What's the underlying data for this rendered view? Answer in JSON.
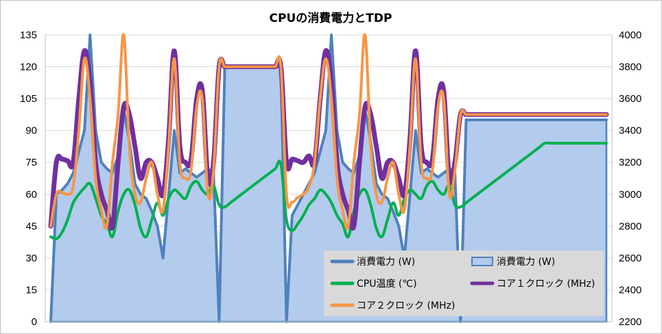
{
  "chart_data": {
    "type": "line",
    "title": "CPUの消費電力とTDP",
    "x_count": 100,
    "y_left": {
      "min": 0,
      "max": 135,
      "ticks": [
        0,
        15,
        30,
        45,
        60,
        75,
        90,
        105,
        120,
        135
      ]
    },
    "y_right": {
      "min": 2200,
      "max": 4000,
      "ticks": [
        2200,
        2400,
        2600,
        2800,
        3000,
        3200,
        3400,
        3600,
        3800,
        4000
      ]
    },
    "grid": true,
    "legend_position": "bottom-right",
    "colors": {
      "area_fill": "#b3cbec",
      "area_stroke": "#4f81bd",
      "power_line": "#4f81bd",
      "temp": "#00b050",
      "core1": "#7030a0",
      "core2": "#f79646",
      "grid": "#d9d9d9",
      "legend_bg": "#d9d9d9"
    },
    "series": [
      {
        "name": "消費電力 (W)",
        "axis": "left",
        "kind": "line",
        "values": [
          0,
          60,
          62,
          65,
          70,
          80,
          90,
          135,
          90,
          75,
          72,
          70,
          78,
          100,
          85,
          65,
          60,
          58,
          52,
          45,
          30,
          60,
          90,
          70,
          72,
          70,
          68,
          70,
          72,
          70,
          0,
          120,
          120,
          120,
          120,
          120,
          120,
          120,
          120,
          120,
          120,
          120,
          0,
          50,
          55,
          60,
          65,
          70,
          80,
          90,
          135,
          90,
          75,
          72,
          70,
          78,
          100,
          85,
          65,
          60,
          58,
          52,
          45,
          30,
          60,
          90,
          70,
          72,
          70,
          68,
          70,
          72,
          70,
          0,
          95,
          95,
          95,
          95,
          95,
          95,
          95,
          95,
          95,
          95,
          95,
          95,
          95,
          95,
          95,
          95,
          95,
          95,
          95,
          95,
          95,
          95,
          95,
          95,
          95,
          95
        ]
      },
      {
        "name": "消費電力 (W)",
        "axis": "left",
        "kind": "area",
        "values": [
          0,
          60,
          62,
          65,
          70,
          80,
          90,
          135,
          90,
          75,
          72,
          70,
          78,
          100,
          85,
          65,
          60,
          58,
          52,
          45,
          30,
          60,
          90,
          70,
          72,
          70,
          68,
          70,
          72,
          70,
          0,
          120,
          120,
          120,
          120,
          120,
          120,
          120,
          120,
          120,
          120,
          120,
          0,
          50,
          55,
          60,
          65,
          70,
          80,
          90,
          135,
          90,
          75,
          72,
          70,
          78,
          100,
          85,
          65,
          60,
          58,
          52,
          45,
          30,
          60,
          90,
          70,
          72,
          70,
          68,
          70,
          72,
          70,
          0,
          95,
          95,
          95,
          95,
          95,
          95,
          95,
          95,
          95,
          95,
          95,
          95,
          95,
          95,
          95,
          95,
          95,
          95,
          95,
          95,
          95,
          95,
          95,
          95,
          95,
          95
        ]
      },
      {
        "name": "CPU温度 (℃)",
        "axis": "left",
        "kind": "line",
        "values": [
          40,
          39,
          42,
          48,
          56,
          60,
          63,
          65,
          58,
          50,
          46,
          40,
          52,
          60,
          62,
          55,
          44,
          40,
          48,
          56,
          50,
          58,
          62,
          60,
          58,
          64,
          66,
          62,
          60,
          64,
          55,
          54,
          56,
          58,
          60,
          62,
          64,
          66,
          68,
          70,
          72,
          74,
          48,
          43,
          46,
          50,
          55,
          58,
          62,
          60,
          56,
          50,
          46,
          40,
          52,
          60,
          62,
          55,
          44,
          40,
          48,
          56,
          50,
          58,
          62,
          60,
          58,
          64,
          66,
          62,
          60,
          64,
          55,
          54,
          56,
          58,
          60,
          62,
          64,
          66,
          68,
          70,
          72,
          74,
          76,
          78,
          80,
          82,
          84,
          84,
          84,
          84,
          84,
          84,
          84,
          84,
          84,
          84,
          84,
          84
        ]
      },
      {
        "name": "コア１クロック (MHz)",
        "axis": "right",
        "kind": "line",
        "values": [
          2800,
          3200,
          3220,
          3210,
          3200,
          3600,
          3900,
          3700,
          3200,
          3000,
          2900,
          2800,
          3200,
          3550,
          3500,
          3300,
          3100,
          3200,
          3200,
          3100,
          3000,
          3350,
          3900,
          3300,
          3200,
          3220,
          3600,
          3650,
          3100,
          3200,
          3800,
          3800,
          3800,
          3800,
          3800,
          3800,
          3800,
          3800,
          3800,
          3800,
          3800,
          3800,
          3200,
          3220,
          3210,
          3200,
          3240,
          3200,
          3600,
          3900,
          3700,
          3200,
          3000,
          2900,
          2800,
          3200,
          3550,
          3500,
          3300,
          3100,
          3200,
          3200,
          3100,
          3000,
          3350,
          3900,
          3300,
          3200,
          3220,
          3600,
          3650,
          3100,
          3200,
          3500,
          3500,
          3500,
          3500,
          3500,
          3500,
          3500,
          3500,
          3500,
          3500,
          3500,
          3500,
          3500,
          3500,
          3500,
          3500,
          3500,
          3500,
          3500,
          3500,
          3500,
          3500,
          3500,
          3500,
          3500,
          3500,
          3500
        ]
      },
      {
        "name": "コア２クロック (MHz)",
        "axis": "right",
        "kind": "line",
        "values": [
          2800,
          3000,
          3010,
          3000,
          3050,
          3400,
          3850,
          3600,
          3100,
          2900,
          2800,
          3200,
          3500,
          4000,
          3300,
          3000,
          2950,
          3100,
          3200,
          3000,
          2900,
          3300,
          3850,
          3200,
          3100,
          3150,
          3550,
          3600,
          3000,
          3150,
          3800,
          3800,
          3800,
          3800,
          3800,
          3800,
          3800,
          3800,
          3800,
          3800,
          3800,
          3800,
          3000,
          2950,
          2980,
          3000,
          3050,
          3200,
          3600,
          3850,
          3600,
          3100,
          2900,
          2800,
          3200,
          3500,
          4000,
          3300,
          3000,
          2950,
          3100,
          3200,
          3000,
          2900,
          3300,
          3850,
          3200,
          3100,
          3150,
          3550,
          3600,
          3000,
          3150,
          3500,
          3500,
          3500,
          3500,
          3500,
          3500,
          3500,
          3500,
          3500,
          3500,
          3500,
          3500,
          3500,
          3500,
          3500,
          3500,
          3500,
          3500,
          3500,
          3500,
          3500,
          3500,
          3500,
          3500,
          3500,
          3500,
          3500
        ]
      }
    ]
  }
}
